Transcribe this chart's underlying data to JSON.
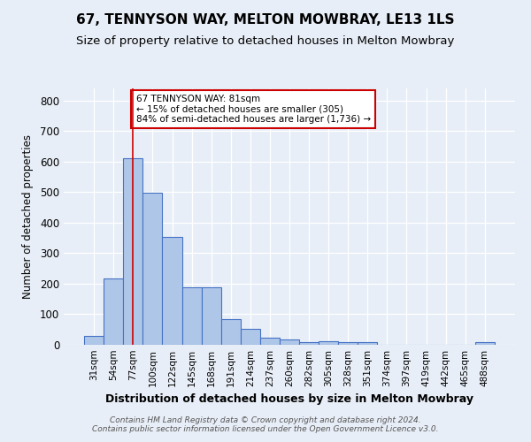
{
  "title": "67, TENNYSON WAY, MELTON MOWBRAY, LE13 1LS",
  "subtitle": "Size of property relative to detached houses in Melton Mowbray",
  "xlabel": "Distribution of detached houses by size in Melton Mowbray",
  "ylabel": "Number of detached properties",
  "bin_labels": [
    "31sqm",
    "54sqm",
    "77sqm",
    "100sqm",
    "122sqm",
    "145sqm",
    "168sqm",
    "191sqm",
    "214sqm",
    "237sqm",
    "260sqm",
    "282sqm",
    "305sqm",
    "328sqm",
    "351sqm",
    "374sqm",
    "397sqm",
    "419sqm",
    "442sqm",
    "465sqm",
    "488sqm"
  ],
  "bar_heights": [
    30,
    218,
    612,
    498,
    352,
    187,
    187,
    83,
    52,
    22,
    17,
    8,
    13,
    9,
    8,
    0,
    0,
    0,
    0,
    0,
    8
  ],
  "bar_color": "#aec6e8",
  "bar_edge_color": "#4472c4",
  "vline_x": 2,
  "vline_color": "#cc0000",
  "annotation_text": "67 TENNYSON WAY: 81sqm\n← 15% of detached houses are smaller (305)\n84% of semi-detached houses are larger (1,736) →",
  "annotation_box_color": "#ffffff",
  "annotation_box_edge": "#cc0000",
  "footer": "Contains HM Land Registry data © Crown copyright and database right 2024.\nContains public sector information licensed under the Open Government Licence v3.0.",
  "bg_color": "#e8eef7",
  "ylim": [
    0,
    840
  ],
  "yticks": [
    0,
    100,
    200,
    300,
    400,
    500,
    600,
    700,
    800
  ],
  "title_fontsize": 11,
  "subtitle_fontsize": 9.5
}
